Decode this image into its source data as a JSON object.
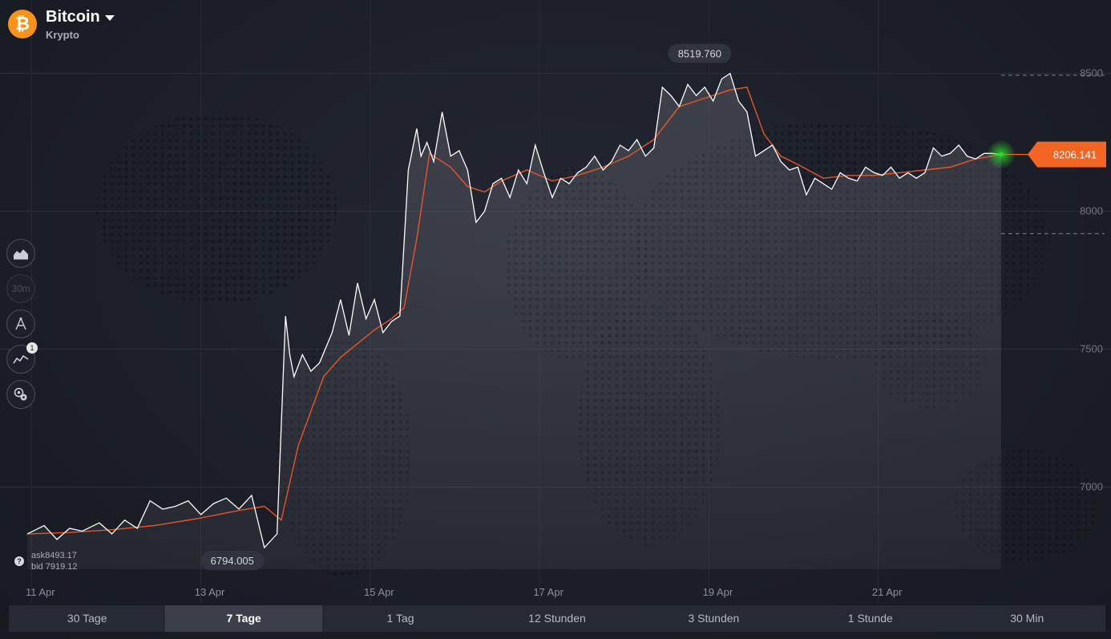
{
  "asset": {
    "name": "Bitcoin",
    "category": "Krypto",
    "icon": "bitcoin-icon",
    "icon_glyph": "₿",
    "icon_color": "#f7931a"
  },
  "tools": [
    {
      "name": "chart-type-button",
      "icon": "area-chart-icon"
    },
    {
      "name": "timeframe-button",
      "icon": "timeframe-icon",
      "label": "30m"
    },
    {
      "name": "drawing-tools-button",
      "icon": "compass-icon"
    },
    {
      "name": "indicators-button",
      "icon": "indicators-icon",
      "badge": "1"
    },
    {
      "name": "settings-button",
      "icon": "gear-icon"
    }
  ],
  "quotes": {
    "ask": "ask8493.17",
    "bid": "bid 7919.12",
    "help_glyph": "?"
  },
  "periods": [
    {
      "label": "30 Tage",
      "active": false
    },
    {
      "label": "7 Tage",
      "active": true
    },
    {
      "label": "1 Tag",
      "active": false
    },
    {
      "label": "12 Stunden",
      "active": false
    },
    {
      "label": "3 Stunden",
      "active": false
    },
    {
      "label": "1 Stunde",
      "active": false
    },
    {
      "label": "30 Min",
      "active": false
    }
  ],
  "colors": {
    "price_line": "#ffffff",
    "moving_average": "#e8552a",
    "current_price": "#f26522",
    "live_marker": "#2fd32f"
  },
  "chart_data": {
    "type": "area",
    "x_labels": [
      "11 Apr",
      "13 Apr",
      "15 Apr",
      "17 Apr",
      "19 Apr",
      "21 Apr"
    ],
    "y_ticks": [
      7000,
      7500,
      8000,
      8500
    ],
    "ylim": [
      6600,
      8650
    ],
    "xlim": [
      0,
      11.7
    ],
    "high_label": "8519.760",
    "low_label": "6794.005",
    "current_price_label": "8206.141",
    "current_price": 8206.141,
    "upper_level": 8493.17,
    "lower_level": 7919.12,
    "series": [
      {
        "name": "price",
        "x": [
          0.0,
          0.2,
          0.35,
          0.5,
          0.65,
          0.85,
          1.0,
          1.15,
          1.3,
          1.45,
          1.6,
          1.75,
          1.9,
          2.05,
          2.2,
          2.35,
          2.5,
          2.65,
          2.8,
          2.95,
          3.05,
          3.1,
          3.15,
          3.25,
          3.35,
          3.45,
          3.6,
          3.7,
          3.8,
          3.9,
          4.0,
          4.1,
          4.2,
          4.3,
          4.4,
          4.5,
          4.6,
          4.65,
          4.72,
          4.8,
          4.9,
          5.0,
          5.1,
          5.2,
          5.3,
          5.4,
          5.5,
          5.6,
          5.7,
          5.8,
          5.9,
          6.0,
          6.1,
          6.2,
          6.3,
          6.4,
          6.5,
          6.6,
          6.7,
          6.8,
          6.9,
          7.0,
          7.1,
          7.2,
          7.3,
          7.4,
          7.5,
          7.6,
          7.7,
          7.8,
          7.9,
          8.0,
          8.1,
          8.2,
          8.3,
          8.4,
          8.5,
          8.6,
          8.7,
          8.8,
          8.9,
          9.0,
          9.1,
          9.2,
          9.3,
          9.4,
          9.5,
          9.6,
          9.7,
          9.8,
          9.9,
          10.0,
          10.1,
          10.2,
          10.3,
          10.4,
          10.5,
          10.6,
          10.7,
          10.8,
          10.9,
          11.0,
          11.1,
          11.2,
          11.3,
          11.4,
          11.5
        ],
        "values": [
          6830,
          6860,
          6810,
          6850,
          6840,
          6870,
          6830,
          6880,
          6850,
          6950,
          6920,
          6930,
          6950,
          6900,
          6940,
          6960,
          6920,
          6970,
          6780,
          6830,
          7620,
          7480,
          7400,
          7480,
          7420,
          7450,
          7560,
          7680,
          7550,
          7740,
          7610,
          7680,
          7560,
          7600,
          7620,
          8150,
          8300,
          8200,
          8250,
          8180,
          8360,
          8200,
          8220,
          8150,
          7960,
          8000,
          8100,
          8120,
          8050,
          8150,
          8100,
          8240,
          8140,
          8050,
          8120,
          8100,
          8140,
          8160,
          8200,
          8150,
          8180,
          8240,
          8220,
          8260,
          8200,
          8230,
          8450,
          8420,
          8380,
          8460,
          8420,
          8450,
          8400,
          8480,
          8500,
          8400,
          8360,
          8200,
          8220,
          8240,
          8180,
          8150,
          8160,
          8060,
          8120,
          8100,
          8080,
          8140,
          8120,
          8110,
          8160,
          8140,
          8130,
          8160,
          8120,
          8140,
          8120,
          8140,
          8230,
          8200,
          8210,
          8240,
          8200,
          8190,
          8210,
          8210,
          8206.141
        ]
      },
      {
        "name": "moving-average",
        "x": [
          0.0,
          0.5,
          1.0,
          1.5,
          2.0,
          2.5,
          2.8,
          3.0,
          3.2,
          3.5,
          3.7,
          3.9,
          4.1,
          4.3,
          4.45,
          4.6,
          4.75,
          5.0,
          5.2,
          5.4,
          5.6,
          5.9,
          6.2,
          6.5,
          6.8,
          7.1,
          7.4,
          7.7,
          8.0,
          8.3,
          8.5,
          8.7,
          8.9,
          9.1,
          9.4,
          9.7,
          10.0,
          10.3,
          10.6,
          10.9,
          11.2,
          11.5
        ],
        "values": [
          6830,
          6835,
          6845,
          6860,
          6885,
          6915,
          6930,
          6880,
          7150,
          7400,
          7470,
          7520,
          7570,
          7610,
          7650,
          7900,
          8210,
          8160,
          8090,
          8070,
          8110,
          8150,
          8110,
          8130,
          8160,
          8200,
          8260,
          8380,
          8410,
          8440,
          8450,
          8280,
          8200,
          8170,
          8120,
          8130,
          8130,
          8140,
          8150,
          8160,
          8190,
          8206
        ]
      }
    ],
    "grid": true
  }
}
